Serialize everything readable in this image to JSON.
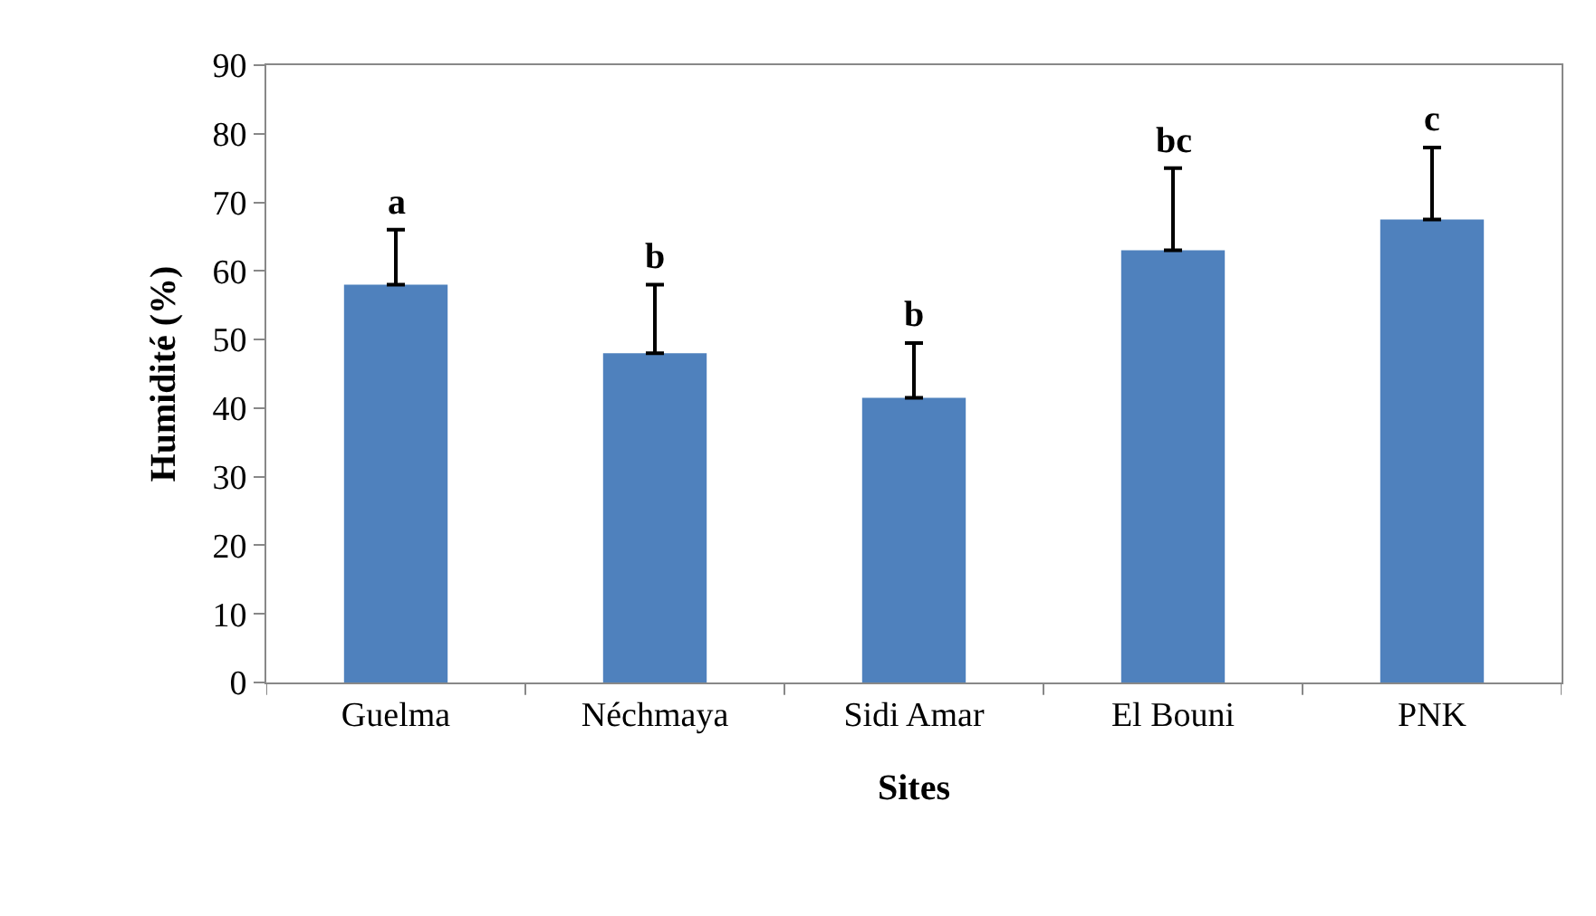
{
  "chart_data": {
    "type": "bar",
    "xlabel": "Sites",
    "ylabel": "Humidité (%)",
    "categories": [
      "Guelma",
      "Néchmaya",
      "Sidi Amar",
      "El Bouni",
      "PNK"
    ],
    "values": [
      58,
      48,
      41.5,
      63,
      67.5
    ],
    "errors": [
      [
        58,
        66
      ],
      [
        48,
        58
      ],
      [
        41.5,
        49.5
      ],
      [
        63,
        75
      ],
      [
        67.5,
        78
      ]
    ],
    "color": "#4f81bd",
    "ylim": [
      0,
      90
    ],
    "yticks": [
      0,
      10,
      20,
      30,
      40,
      50,
      60,
      70,
      80,
      90
    ],
    "grid": false,
    "annotations": [
      "a",
      "b",
      "b",
      "bc",
      "c"
    ]
  }
}
